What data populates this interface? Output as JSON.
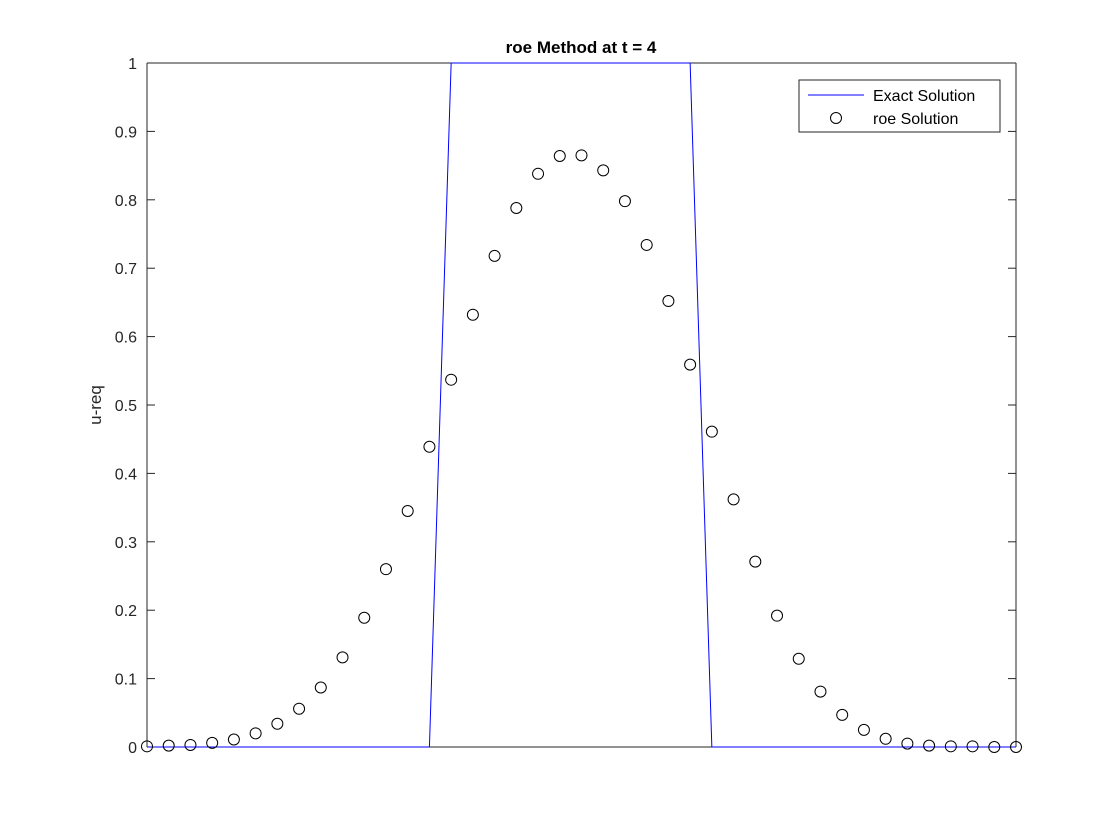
{
  "chart_data": {
    "type": "line",
    "title": "roe Method at t = 4",
    "xlabel": "",
    "ylabel": "u-req",
    "xlim": [
      1,
      41
    ],
    "ylim": [
      0,
      1
    ],
    "yticks": [
      0,
      0.1,
      0.2,
      0.3,
      0.4,
      0.5,
      0.6,
      0.7,
      0.8,
      0.9,
      1
    ],
    "ytick_labels": [
      "0",
      "0.1",
      "0.2",
      "0.3",
      "0.4",
      "0.5",
      "0.6",
      "0.7",
      "0.8",
      "0.9",
      "1"
    ],
    "grid": false,
    "legend_position": "top-right",
    "series": [
      {
        "name": "Exact Solution",
        "style": "line",
        "color": "#0000ff",
        "x": [
          1,
          14,
          15,
          26,
          27,
          41
        ],
        "y": [
          0,
          0,
          1,
          1,
          0,
          0
        ]
      },
      {
        "name": "roe Solution",
        "style": "marker-circle",
        "color": "#000000",
        "x": [
          1,
          2,
          3,
          4,
          5,
          6,
          7,
          8,
          9,
          10,
          11,
          12,
          13,
          14,
          15,
          16,
          17,
          18,
          19,
          20,
          21,
          22,
          23,
          24,
          25,
          26,
          27,
          28,
          29,
          30,
          31,
          32,
          33,
          34,
          35,
          36,
          37,
          38,
          39,
          40,
          41
        ],
        "y": [
          0.001,
          0.002,
          0.003,
          0.006,
          0.011,
          0.02,
          0.034,
          0.056,
          0.087,
          0.131,
          0.189,
          0.26,
          0.345,
          0.439,
          0.537,
          0.632,
          0.718,
          0.788,
          0.838,
          0.864,
          0.865,
          0.843,
          0.798,
          0.734,
          0.652,
          0.559,
          0.461,
          0.362,
          0.271,
          0.192,
          0.129,
          0.081,
          0.047,
          0.025,
          0.012,
          0.005,
          0.002,
          0.001,
          0.001,
          0.0,
          0.0
        ]
      }
    ]
  }
}
